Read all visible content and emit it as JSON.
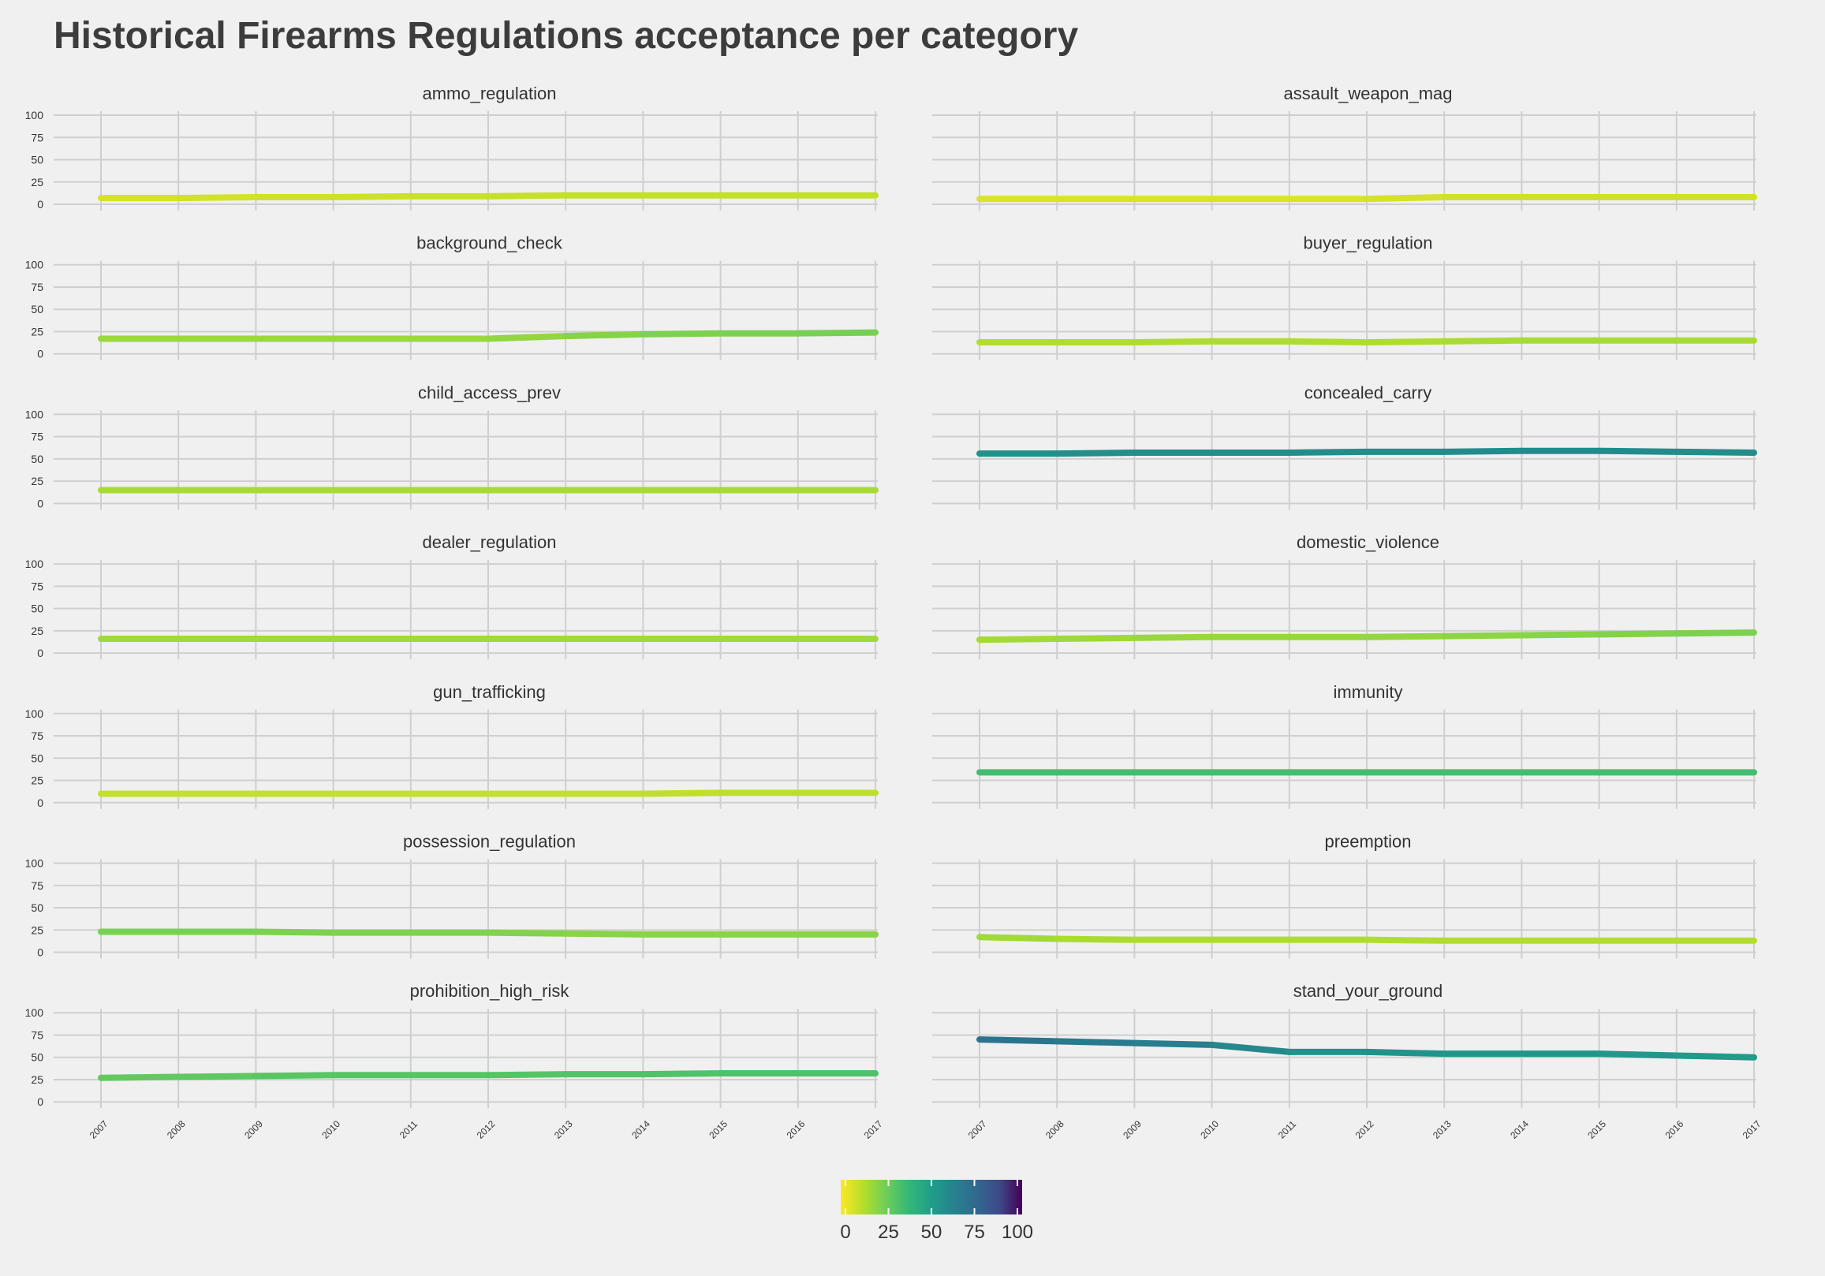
{
  "title": "Historical Firearms Regulations acceptance per category",
  "chart_data": {
    "type": "line",
    "title": "Historical Firearms Regulations acceptance per category",
    "x": [
      "2007",
      "2008",
      "2009",
      "2010",
      "2011",
      "2012",
      "2013",
      "2014",
      "2015",
      "2016",
      "2017"
    ],
    "ylim": [
      0,
      100
    ],
    "yticks": [
      0,
      25,
      50,
      75,
      100
    ],
    "grid": true,
    "colorscale": "viridis (reversed)",
    "colorbar": {
      "position": "bottom-center",
      "range": [
        0,
        100
      ],
      "ticks": [
        "0",
        "25",
        "50",
        "75",
        "100"
      ]
    },
    "panels": [
      {
        "name": "ammo_regulation",
        "values": [
          7,
          7,
          8,
          8,
          9,
          9,
          10,
          10,
          10,
          10,
          10
        ]
      },
      {
        "name": "assault_weapon_mag",
        "values": [
          6,
          6,
          6,
          6,
          6,
          6,
          8,
          8,
          8,
          8,
          8
        ]
      },
      {
        "name": "background_check",
        "values": [
          17,
          17,
          17,
          17,
          17,
          17,
          20,
          22,
          23,
          23,
          24
        ]
      },
      {
        "name": "buyer_regulation",
        "values": [
          13,
          13,
          13,
          14,
          14,
          13,
          14,
          15,
          15,
          15,
          15
        ]
      },
      {
        "name": "child_access_prev",
        "values": [
          15,
          15,
          15,
          15,
          15,
          15,
          15,
          15,
          15,
          15,
          15
        ]
      },
      {
        "name": "concealed_carry",
        "values": [
          56,
          56,
          57,
          57,
          57,
          58,
          58,
          59,
          59,
          58,
          57
        ]
      },
      {
        "name": "dealer_regulation",
        "values": [
          16,
          16,
          16,
          16,
          16,
          16,
          16,
          16,
          16,
          16,
          16
        ]
      },
      {
        "name": "domestic_violence",
        "values": [
          15,
          16,
          17,
          18,
          18,
          18,
          19,
          20,
          21,
          22,
          23
        ]
      },
      {
        "name": "gun_trafficking",
        "values": [
          10,
          10,
          10,
          10,
          10,
          10,
          10,
          10,
          11,
          11,
          11
        ]
      },
      {
        "name": "immunity",
        "values": [
          34,
          34,
          34,
          34,
          34,
          34,
          34,
          34,
          34,
          34,
          34
        ]
      },
      {
        "name": "possession_regulation",
        "values": [
          23,
          23,
          23,
          22,
          22,
          22,
          21,
          20,
          20,
          20,
          20
        ]
      },
      {
        "name": "preemption",
        "values": [
          17,
          15,
          14,
          14,
          14,
          14,
          13,
          13,
          13,
          13,
          13
        ]
      },
      {
        "name": "prohibition_high_risk",
        "values": [
          27,
          28,
          29,
          30,
          30,
          30,
          31,
          31,
          32,
          32,
          32
        ]
      },
      {
        "name": "stand_your_ground",
        "values": [
          70,
          68,
          66,
          64,
          56,
          56,
          54,
          54,
          54,
          52,
          50
        ]
      }
    ]
  }
}
